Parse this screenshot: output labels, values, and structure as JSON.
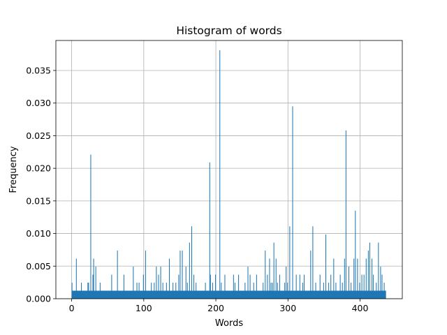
{
  "chart_data": {
    "type": "bar",
    "title": "Histogram of words",
    "xlabel": "Words",
    "ylabel": "Frequency",
    "xlim": [
      -21.9,
      458.6
    ],
    "ylim": [
      0,
      0.0396
    ],
    "grid": true,
    "bar_color": "#1f77b4",
    "x_ticks": [
      0,
      100,
      200,
      300,
      400
    ],
    "x_tick_labels": [
      "0",
      "100",
      "200",
      "300",
      "400"
    ],
    "y_ticks": [
      0.0,
      0.005,
      0.01,
      0.015,
      0.02,
      0.025,
      0.03,
      0.035
    ],
    "y_tick_labels": [
      "0.000",
      "0.005",
      "0.010",
      "0.015",
      "0.020",
      "0.025",
      "0.030",
      "0.035"
    ],
    "baseline": {
      "x_start": 0,
      "x_end": 436,
      "value": 0.00123
    },
    "x": [
      0,
      6,
      13,
      22,
      23,
      26,
      29,
      30,
      33,
      39,
      55,
      63,
      72,
      85,
      90,
      93,
      99,
      102,
      110,
      114,
      117,
      120,
      123,
      126,
      131,
      135,
      140,
      144,
      148,
      150,
      153,
      158,
      160,
      163,
      166,
      169,
      172,
      185,
      191,
      192,
      195,
      199,
      205,
      207,
      212,
      224,
      226,
      231,
      240,
      244,
      247,
      252,
      256,
      265,
      268,
      271,
      274,
      276,
      278,
      280,
      283,
      285,
      288,
      295,
      297,
      299,
      302,
      306,
      311,
      316,
      320,
      322,
      331,
      334,
      338,
      344,
      349,
      352,
      356,
      359,
      363,
      366,
      372,
      375,
      378,
      380,
      384,
      387,
      391,
      393,
      396,
      399,
      402,
      405,
      408,
      411,
      413,
      416,
      418,
      422,
      425,
      428,
      430,
      433
    ],
    "values": [
      0.00246,
      0.00615,
      0.00246,
      0.00246,
      0.00246,
      0.0221,
      0.00369,
      0.00615,
      0.00492,
      0.00246,
      0.00369,
      0.00738,
      0.00369,
      0.00492,
      0.00246,
      0.00246,
      0.00369,
      0.00738,
      0.00246,
      0.00246,
      0.00492,
      0.00369,
      0.00492,
      0.00246,
      0.00246,
      0.00615,
      0.00246,
      0.00246,
      0.00369,
      0.00738,
      0.00738,
      0.00492,
      0.00246,
      0.00861,
      0.0111,
      0.00369,
      0.00246,
      0.00246,
      0.0209,
      0.00369,
      0.00246,
      0.00369,
      0.0381,
      0.00246,
      0.00369,
      0.00369,
      0.00246,
      0.00369,
      0.00246,
      0.00492,
      0.00369,
      0.00246,
      0.00369,
      0.00246,
      0.00738,
      0.00369,
      0.00615,
      0.00246,
      0.00246,
      0.00861,
      0.00615,
      0.00246,
      0.00369,
      0.00246,
      0.00492,
      0.00246,
      0.0111,
      0.0295,
      0.00369,
      0.00369,
      0.00246,
      0.00369,
      0.00738,
      0.0111,
      0.00246,
      0.00369,
      0.00246,
      0.00984,
      0.00246,
      0.00369,
      0.00615,
      0.00246,
      0.00369,
      0.00246,
      0.00615,
      0.0258,
      0.00492,
      0.00246,
      0.00615,
      0.0135,
      0.00615,
      0.00246,
      0.00369,
      0.00369,
      0.00615,
      0.00738,
      0.00861,
      0.00615,
      0.00369,
      0.00246,
      0.00861,
      0.00492,
      0.00369,
      0.00246
    ]
  }
}
